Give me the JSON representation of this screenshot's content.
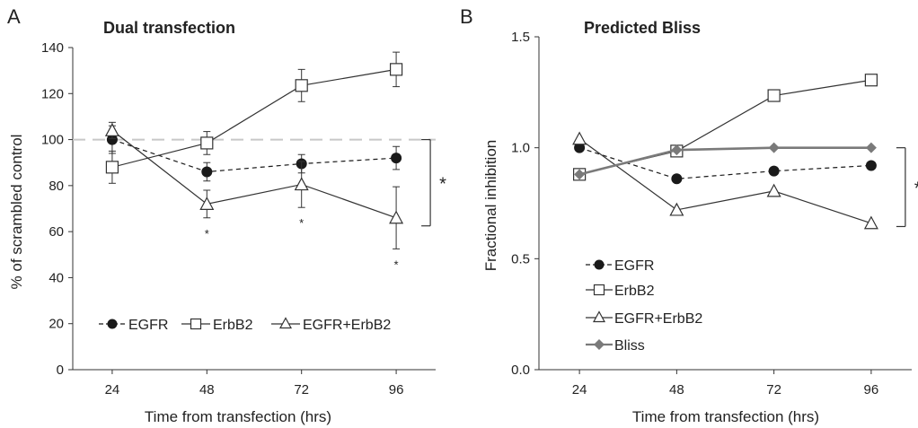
{
  "chart_data": [
    {
      "panel_label": "A",
      "type": "line",
      "title": "Dual transfection",
      "xlabel": "Time from transfection (hrs)",
      "ylabel": "% of scrambled control",
      "x": [
        24,
        48,
        72,
        96
      ],
      "xlim": [
        14,
        106
      ],
      "ylim": [
        0,
        140
      ],
      "yticks": [
        "0",
        "20",
        "40",
        "60",
        "80",
        "100",
        "120",
        "140"
      ],
      "reference_line": 100,
      "series": [
        {
          "name": "EGFR",
          "marker": "circle-filled",
          "dash": true,
          "color": "#1a1a1a",
          "values": [
            100,
            86,
            89.5,
            92
          ],
          "errors": [
            6,
            4,
            4,
            5
          ]
        },
        {
          "name": "ErbB2",
          "marker": "square-open",
          "dash": false,
          "color": "#333333",
          "values": [
            88,
            98.5,
            123.5,
            130.5
          ],
          "errors": [
            7,
            5,
            7,
            7.5
          ]
        },
        {
          "name": "EGFR+ErbB2",
          "marker": "triangle-open",
          "dash": false,
          "color": "#333333",
          "values": [
            104,
            72,
            80.5,
            66
          ],
          "errors": [
            3.5,
            6,
            10,
            13.5
          ]
        }
      ],
      "point_stars": [
        {
          "x": 48,
          "label": "*"
        },
        {
          "x": 72,
          "label": "*"
        },
        {
          "x": 96,
          "label": "*"
        }
      ],
      "bracket": {
        "from": 100,
        "to": 62.5,
        "label": "*"
      },
      "legend_position": "bottom, single row"
    },
    {
      "panel_label": "B",
      "type": "line",
      "title": "Predicted Bliss",
      "xlabel": "Time from transfection (hrs)",
      "ylabel": "Fractional inhibition",
      "x": [
        24,
        48,
        72,
        96
      ],
      "xlim": [
        14,
        106
      ],
      "ylim": [
        0,
        1.5
      ],
      "yticks": [
        "0.0",
        "0.5",
        "1.0",
        "1.5"
      ],
      "series": [
        {
          "name": "EGFR",
          "marker": "circle-filled",
          "dash": true,
          "color": "#1a1a1a",
          "values": [
            1.0,
            0.86,
            0.895,
            0.92
          ]
        },
        {
          "name": "ErbB2",
          "marker": "square-open",
          "dash": false,
          "color": "#333333",
          "values": [
            0.88,
            0.985,
            1.235,
            1.305
          ]
        },
        {
          "name": "EGFR+ErbB2",
          "marker": "triangle-open",
          "dash": false,
          "color": "#333333",
          "values": [
            1.04,
            0.72,
            0.805,
            0.66
          ]
        },
        {
          "name": "Bliss",
          "marker": "diamond-filled",
          "dash": false,
          "color": "#7a7a7a",
          "values": [
            0.88,
            0.99,
            1.0,
            1.0
          ]
        }
      ],
      "bracket": {
        "from": 1.0,
        "to": 0.645,
        "label": "*"
      },
      "legend_position": "bottom-left, stacked"
    }
  ]
}
